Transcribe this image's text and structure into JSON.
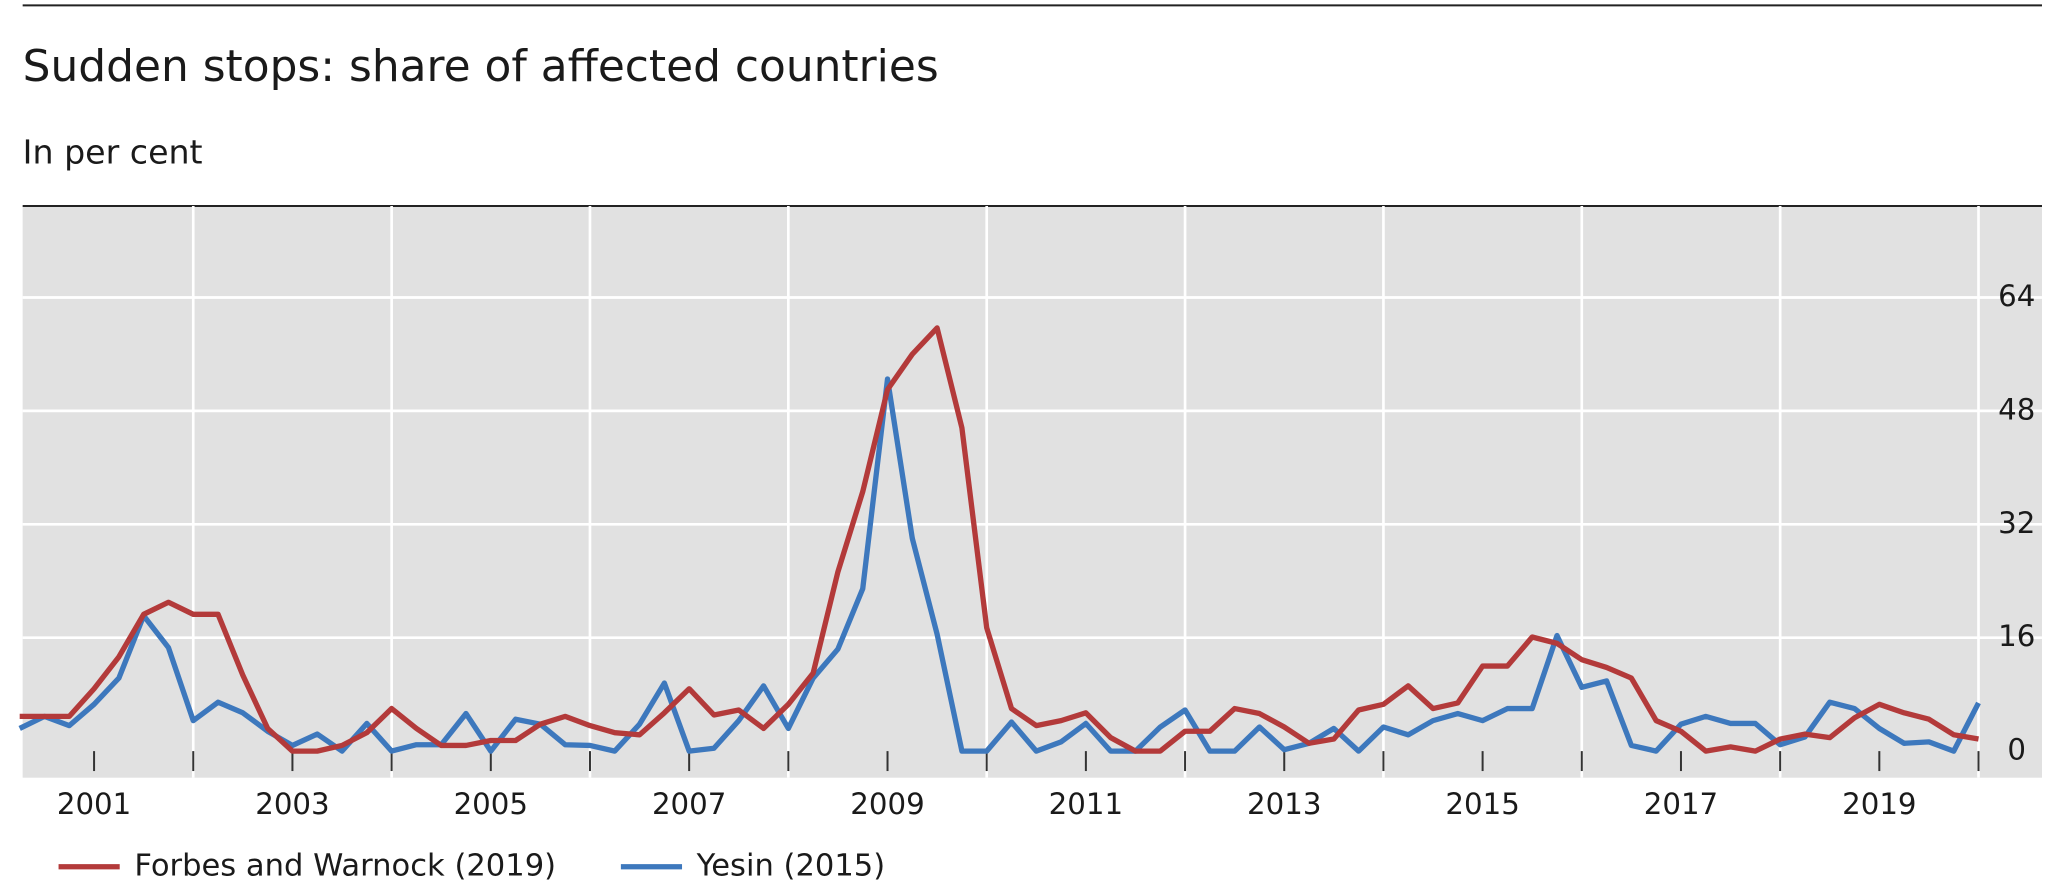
{
  "chart_data": {
    "type": "line",
    "title": "Sudden stops: share of affected countries",
    "subtitle": "In per cent",
    "x": [
      2000.25,
      2000.5,
      2000.75,
      2001,
      2001.25,
      2001.5,
      2001.75,
      2002,
      2002.25,
      2002.5,
      2002.75,
      2003,
      2003.25,
      2003.5,
      2003.75,
      2004,
      2004.25,
      2004.5,
      2004.75,
      2005,
      2005.25,
      2005.5,
      2005.75,
      2006,
      2006.25,
      2006.5,
      2006.75,
      2007,
      2007.25,
      2007.5,
      2007.75,
      2008,
      2008.25,
      2008.5,
      2008.75,
      2009,
      2009.25,
      2009.5,
      2009.75,
      2010,
      2010.25,
      2010.5,
      2010.75,
      2011,
      2011.25,
      2011.5,
      2011.75,
      2012,
      2012.25,
      2012.5,
      2012.75,
      2013,
      2013.25,
      2013.5,
      2013.75,
      2014,
      2014.25,
      2014.5,
      2014.75,
      2015,
      2015.25,
      2015.5,
      2015.75,
      2016,
      2016.25,
      2016.5,
      2016.75,
      2017,
      2017.25,
      2017.5,
      2017.75,
      2018,
      2018.25,
      2018.5,
      2018.75,
      2019,
      2019.25,
      2019.5,
      2019.75,
      2020
    ],
    "series": [
      {
        "name": "Forbes and Warnock (2019)",
        "color": "#b33a3a",
        "values": [
          4.9,
          4.9,
          4.9,
          8.8,
          13.3,
          19.3,
          21,
          19.3,
          19.3,
          10.7,
          3.2,
          0,
          0,
          0.8,
          2.6,
          6,
          3.2,
          0.8,
          0.8,
          1.5,
          1.5,
          3.8,
          4.9,
          3.6,
          2.6,
          2.3,
          5.4,
          8.8,
          5.1,
          5.8,
          3.2,
          6.6,
          11,
          25.3,
          36.6,
          51,
          56,
          59.7,
          45.6,
          17.4,
          6,
          3.6,
          4.3,
          5.4,
          1.9,
          0,
          0,
          2.8,
          2.8,
          6,
          5.3,
          3.4,
          1.1,
          1.7,
          5.8,
          6.6,
          9.2,
          6,
          6.8,
          12,
          12,
          16.1,
          15.2,
          12.9,
          11.8,
          10.3,
          4.3,
          2.8,
          0,
          0.6,
          0,
          1.7,
          2.4,
          1.9,
          4.7,
          6.6,
          5.4,
          4.5,
          2.3,
          1.7
        ]
      },
      {
        "name": "Yesin (2015)",
        "color": "#3d78bd",
        "values": [
          3.2,
          4.9,
          3.6,
          6.6,
          10.3,
          19.1,
          14.6,
          4.3,
          6.9,
          5.4,
          2.8,
          0.8,
          2.4,
          0,
          3.9,
          0,
          0.9,
          0.9,
          5.3,
          0,
          4.5,
          3.8,
          0.9,
          0.8,
          0,
          3.8,
          9.6,
          0,
          0.4,
          4.3,
          9.2,
          3.2,
          10.3,
          14.4,
          22.9,
          52.5,
          30,
          16.5,
          0,
          0,
          4.1,
          0,
          1.3,
          3.9,
          0,
          0,
          3.4,
          5.8,
          0,
          0,
          3.4,
          0.2,
          1.1,
          3.2,
          0,
          3.4,
          2.3,
          4.3,
          5.3,
          4.3,
          6,
          6,
          16.3,
          9,
          9.9,
          0.8,
          0,
          3.8,
          4.9,
          3.9,
          3.9,
          0.9,
          2,
          6.9,
          6,
          3.2,
          1.1,
          1.3,
          0,
          6.8
        ]
      }
    ],
    "xlim": [
      2000.28,
      2020.64
    ],
    "xticks": [
      2001,
      2003,
      2005,
      2007,
      2009,
      2011,
      2013,
      2015,
      2017,
      2019
    ],
    "xgrid": [
      2002,
      2004,
      2006,
      2008,
      2010,
      2012,
      2014,
      2016,
      2018,
      2020
    ],
    "ylim": [
      -3.75,
      76.9
    ],
    "yticks": [
      0,
      16,
      32,
      48,
      64
    ],
    "grid": true
  }
}
